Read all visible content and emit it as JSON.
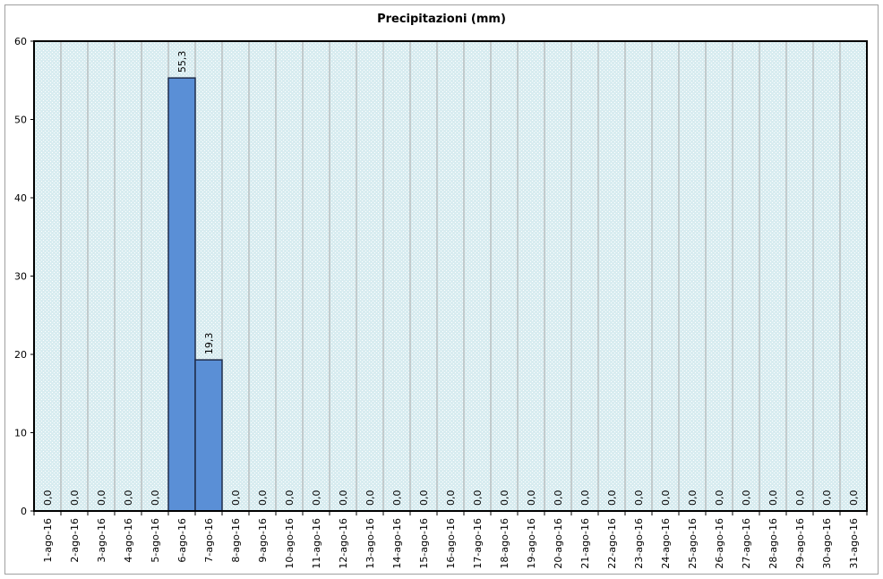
{
  "chart_data": {
    "type": "bar",
    "title": "Precipitazioni (mm)",
    "xlabel": "",
    "ylabel": "",
    "ylim": [
      0,
      60
    ],
    "yticks": [
      0,
      10,
      20,
      30,
      40,
      50,
      60
    ],
    "grid": "vertical",
    "categories": [
      "1-ago-16",
      "2-ago-16",
      "3-ago-16",
      "4-ago-16",
      "5-ago-16",
      "6-ago-16",
      "7-ago-16",
      "8-ago-16",
      "9-ago-16",
      "10-ago-16",
      "11-ago-16",
      "12-ago-16",
      "13-ago-16",
      "14-ago-16",
      "15-ago-16",
      "16-ago-16",
      "17-ago-16",
      "18-ago-16",
      "19-ago-16",
      "20-ago-16",
      "21-ago-16",
      "22-ago-16",
      "23-ago-16",
      "24-ago-16",
      "25-ago-16",
      "26-ago-16",
      "27-ago-16",
      "28-ago-16",
      "29-ago-16",
      "30-ago-16",
      "31-ago-16"
    ],
    "values": [
      0,
      0,
      0,
      0,
      0,
      55.3,
      19.3,
      0,
      0,
      0,
      0,
      0,
      0,
      0,
      0,
      0,
      0,
      0,
      0,
      0,
      0,
      0,
      0,
      0,
      0,
      0,
      0,
      0,
      0,
      0,
      0
    ],
    "data_labels": [
      "0,0",
      "0,0",
      "0,0",
      "0,0",
      "0,0",
      "55,3",
      "19,3",
      "0,0",
      "0,0",
      "0,0",
      "0,0",
      "0,0",
      "0,0",
      "0,0",
      "0,0",
      "0,0",
      "0,0",
      "0,0",
      "0,0",
      "0,0",
      "0,0",
      "0,0",
      "0,0",
      "0,0",
      "0,0",
      "0,0",
      "0,0",
      "0,0",
      "0,0",
      "0,0",
      "0,0"
    ],
    "colors": {
      "bar_fill": "#5a8fd6",
      "bar_stroke": "#1f2d4a",
      "plot_bg": "#d8ecf0",
      "plot_pattern": "#ffffff",
      "grid": "#a8a8a8",
      "axis": "#000000"
    }
  }
}
